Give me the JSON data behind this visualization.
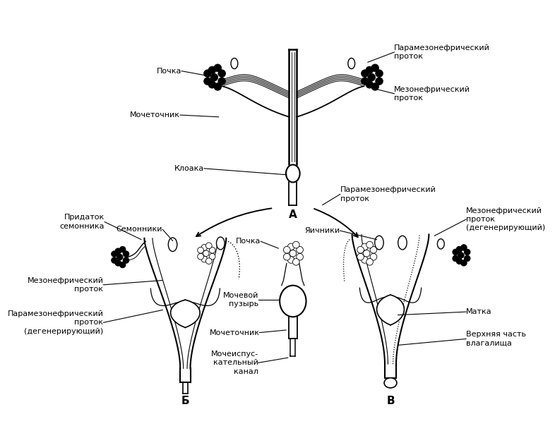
{
  "bg_color": "#ffffff",
  "fs": 8.0,
  "fs_bold": 11,
  "labels": {
    "pochka": "Почка",
    "mochetochnik": "Мочеточник",
    "kloaka": "Клоака",
    "paramezo": "Парамезонефрический\nпроток",
    "mezo": "Мезонефрический\nпроток",
    "A": "А",
    "B": "Б",
    "C": "В",
    "pridatok": "Придаток\nсемонника",
    "semenniki": "Семонники",
    "mezo_duct": "Мезонефрический\nпроток",
    "paramezo_deg_l": "Парамезонефрический\nпроток\n(дегенерирующий)",
    "pochka_c": "Почка",
    "moch_puz": "Мочевой\nпузырь",
    "mochetochnik_c": "Мочеточник",
    "moch_isp": "Мочеиспус-\nкательный\nканал",
    "yachniki": "Яичники",
    "paramezo_r": "Парамезонефрический\nпроток",
    "mezo_deg_r": "Мезонефрический\nпроток\n(дегенерирующий)",
    "matka": "Матка",
    "vagina": "Верхняя часть\nвлагалища"
  }
}
